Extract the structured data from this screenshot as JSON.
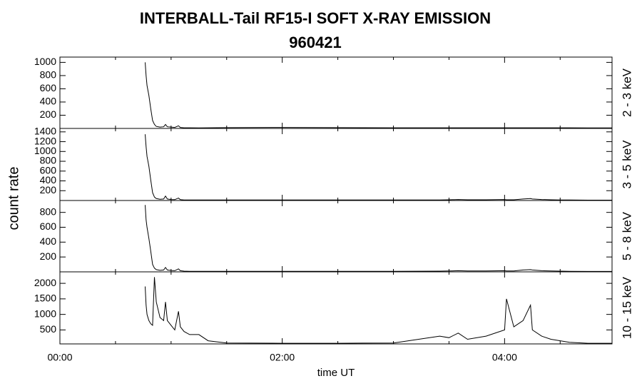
{
  "title": "INTERBALL-Tail RF15-I SOFT X-RAY EMISSION",
  "subtitle": "960421",
  "ylabel": "count rate",
  "chart_data": [
    {
      "type": "line",
      "ylabel": "2 - 3 keV",
      "color": "#000000",
      "xlim": [
        0,
        298
      ],
      "ylim": [
        0,
        1080
      ],
      "yticks": [
        200,
        400,
        600,
        800,
        1000
      ],
      "x": [
        46,
        46.5,
        47,
        48,
        49,
        50,
        51,
        52,
        54,
        56,
        57,
        58,
        60,
        62,
        64,
        65,
        67,
        70,
        75,
        80,
        90,
        120,
        150,
        180,
        205,
        210,
        215,
        220,
        230,
        240,
        241,
        245,
        250,
        254,
        255,
        260,
        265,
        270,
        275,
        285,
        298
      ],
      "values": [
        1000,
        800,
        650,
        500,
        300,
        120,
        60,
        30,
        20,
        25,
        60,
        25,
        20,
        15,
        40,
        15,
        10,
        10,
        8,
        10,
        12,
        15,
        12,
        10,
        10,
        10,
        10,
        10,
        10,
        10,
        10,
        10,
        10,
        10,
        10,
        10,
        10,
        10,
        10,
        8,
        8
      ]
    },
    {
      "type": "line",
      "ylabel": "3 - 5 keV",
      "color": "#000000",
      "xlim": [
        0,
        298
      ],
      "ylim": [
        0,
        1470
      ],
      "yticks": [
        200,
        400,
        600,
        800,
        1000,
        1200,
        1400
      ],
      "x": [
        46,
        46.5,
        47,
        48,
        49,
        50,
        51,
        52,
        54,
        56,
        57,
        58,
        60,
        62,
        64,
        65,
        67,
        70,
        75,
        80,
        90,
        120,
        150,
        180,
        205,
        210,
        215,
        220,
        230,
        240,
        241,
        245,
        250,
        254,
        255,
        260,
        265,
        270,
        275,
        285,
        298
      ],
      "values": [
        1350,
        1100,
        900,
        700,
        420,
        160,
        70,
        40,
        25,
        30,
        90,
        30,
        20,
        18,
        50,
        18,
        12,
        10,
        10,
        10,
        10,
        10,
        10,
        10,
        12,
        15,
        20,
        15,
        15,
        20,
        15,
        15,
        30,
        40,
        30,
        20,
        15,
        12,
        10,
        8,
        8
      ]
    },
    {
      "type": "line",
      "ylabel": "5 - 8 keV",
      "color": "#000000",
      "xlim": [
        0,
        298
      ],
      "ylim": [
        0,
        960
      ],
      "yticks": [
        200,
        400,
        600,
        800
      ],
      "x": [
        46,
        46.5,
        47,
        48,
        49,
        50,
        51,
        52,
        54,
        56,
        57,
        58,
        60,
        62,
        64,
        65,
        67,
        70,
        75,
        80,
        90,
        120,
        150,
        180,
        205,
        210,
        215,
        220,
        230,
        240,
        241,
        245,
        250,
        254,
        255,
        260,
        265,
        270,
        275,
        285,
        298
      ],
      "values": [
        900,
        700,
        600,
        450,
        280,
        100,
        50,
        30,
        20,
        25,
        60,
        25,
        18,
        15,
        40,
        15,
        10,
        8,
        8,
        8,
        8,
        8,
        8,
        8,
        10,
        12,
        15,
        12,
        12,
        15,
        12,
        12,
        25,
        30,
        25,
        15,
        12,
        10,
        8,
        6,
        6
      ]
    },
    {
      "type": "line",
      "ylabel": "10 - 15 keV",
      "xlabel": "time UT",
      "color": "#000000",
      "xlim": [
        0,
        298
      ],
      "ylim": [
        50,
        2370
      ],
      "yticks": [
        500,
        1000,
        1500,
        2000
      ],
      "xticks": [
        {
          "value": 0,
          "label": "00:00"
        },
        {
          "value": 120,
          "label": "02:00"
        },
        {
          "value": 240,
          "label": "04:00"
        }
      ],
      "xminorticks": [
        30,
        60,
        90,
        150,
        180,
        210,
        270
      ],
      "x": [
        46,
        46.5,
        47,
        48,
        49,
        50,
        51,
        52,
        54,
        56,
        57,
        58,
        60,
        62,
        64,
        65,
        67,
        70,
        75,
        80,
        90,
        120,
        150,
        180,
        205,
        210,
        215,
        220,
        230,
        240,
        241,
        245,
        250,
        254,
        255,
        260,
        265,
        270,
        275,
        285,
        298
      ],
      "values": [
        1900,
        1300,
        1000,
        800,
        700,
        650,
        2200,
        1400,
        900,
        800,
        1400,
        800,
        650,
        500,
        1100,
        600,
        450,
        350,
        350,
        150,
        80,
        70,
        70,
        80,
        300,
        250,
        400,
        200,
        300,
        500,
        1500,
        600,
        800,
        1300,
        500,
        300,
        200,
        150,
        100,
        70,
        70
      ]
    }
  ]
}
